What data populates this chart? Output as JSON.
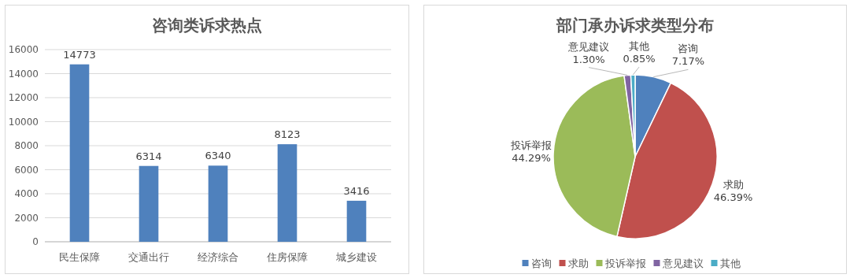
{
  "chart_data": [
    {
      "type": "bar",
      "title": "咨询类诉求热点",
      "categories": [
        "民生保障",
        "交通出行",
        "经济综合",
        "住房保障",
        "城乡建设"
      ],
      "values": [
        14773,
        6314,
        6340,
        8123,
        3416
      ],
      "color": "#4f81bd",
      "ylim": [
        0,
        16000
      ],
      "yticks": [
        0,
        2000,
        4000,
        6000,
        8000,
        10000,
        12000,
        14000,
        16000
      ],
      "grid": "y",
      "data_labels": true
    },
    {
      "type": "pie",
      "title": "部门承办诉求类型分布",
      "categories": [
        "咨询",
        "求助",
        "投诉举报",
        "意见建议",
        "其他"
      ],
      "values": [
        7.17,
        46.39,
        44.29,
        1.3,
        0.85
      ],
      "colors": [
        "#4f81bd",
        "#c0504d",
        "#9bbb59",
        "#8064a2",
        "#4bacc6"
      ],
      "value_labels": [
        "7.17%",
        "46.39%",
        "44.29%",
        "1.30%",
        "0.85%"
      ],
      "legend": "bottom"
    }
  ]
}
